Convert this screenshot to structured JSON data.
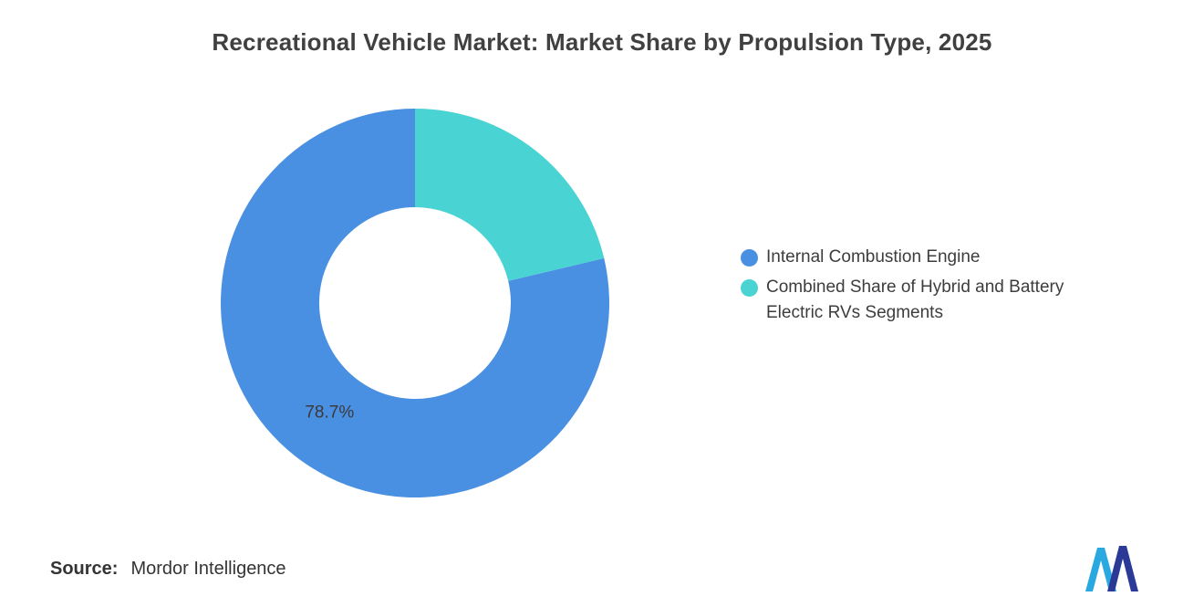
{
  "header": {
    "title": "Recreational Vehicle Market: Market Share by Propulsion Type, 2025"
  },
  "chart_data": {
    "type": "pie",
    "subtype": "donut",
    "title": "Recreational Vehicle Market: Market Share by Propulsion Type, 2025",
    "unit": "%",
    "start_angle": "top",
    "inner_radius_ratio": 0.49,
    "legend_position": "right",
    "slices": [
      {
        "label": "Internal Combustion Engine",
        "value": 78.7,
        "color": "#4A90E2",
        "data_label": "78.7%"
      },
      {
        "label": "Combined Share of Hybrid and Battery Electric RVs Segments",
        "value": 21.3,
        "color": "#4AD3D3",
        "data_label": ""
      }
    ]
  },
  "footer": {
    "source_label": "Source:",
    "source_value": "Mordor Intelligence"
  },
  "logo": {
    "name": "mordor-intelligence-logo",
    "colors": {
      "light": "#29A9E0",
      "dark": "#2B3A97"
    }
  }
}
